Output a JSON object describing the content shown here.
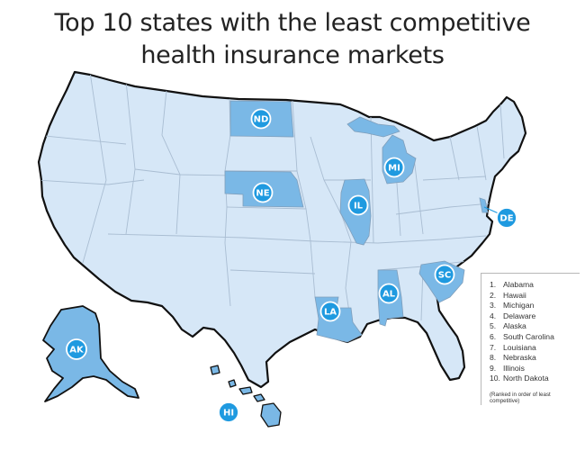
{
  "title": {
    "line1": "Top 10 states with the least competitive",
    "line2": "health insurance markets"
  },
  "colors": {
    "base_state": "#d6e7f7",
    "highlight_state": "#7ab8e6",
    "border": "#9fb3c8",
    "outline": "#111111",
    "badge_fill": "#1f9ae0",
    "badge_text": "#ffffff"
  },
  "markers": [
    {
      "abbr": "ND",
      "rank": 10
    },
    {
      "abbr": "NE",
      "rank": 8
    },
    {
      "abbr": "MI",
      "rank": 3
    },
    {
      "abbr": "IL",
      "rank": 9
    },
    {
      "abbr": "DE",
      "rank": 4
    },
    {
      "abbr": "SC",
      "rank": 6
    },
    {
      "abbr": "AL",
      "rank": 1
    },
    {
      "abbr": "LA",
      "rank": 7
    },
    {
      "abbr": "AK",
      "rank": 5
    },
    {
      "abbr": "HI",
      "rank": 2
    }
  ],
  "legend": {
    "items": [
      {
        "num": "1.",
        "name": "Alabama"
      },
      {
        "num": "2.",
        "name": "Hawaii"
      },
      {
        "num": "3.",
        "name": "Michigan"
      },
      {
        "num": "4.",
        "name": "Delaware"
      },
      {
        "num": "5.",
        "name": "Alaska"
      },
      {
        "num": "6.",
        "name": "South Carolina"
      },
      {
        "num": "7.",
        "name": "Louisiana"
      },
      {
        "num": "8.",
        "name": "Nebraska"
      },
      {
        "num": "9.",
        "name": "Illinois"
      },
      {
        "num": "10.",
        "name": "North Dakota"
      }
    ],
    "note": "(Ranked in order of least competitive)"
  }
}
